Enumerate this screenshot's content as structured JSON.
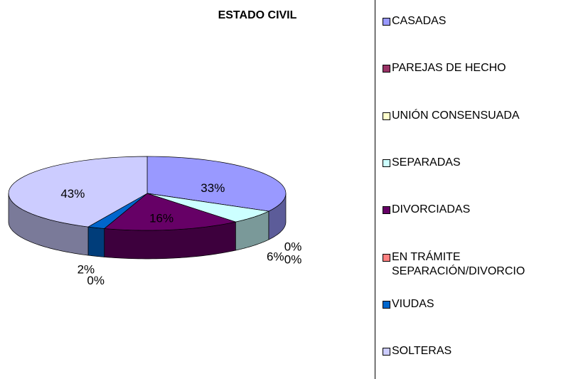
{
  "chart_data": {
    "type": "pie",
    "title": "ESTADO CIVIL",
    "categories": [
      "CASADAS",
      "PAREJAS DE HECHO",
      "UNIÓN CONSENSUADA",
      "SEPARADAS",
      "DIVORCIADAS",
      "EN TRÁMITE SEPARACIÓN/DIVORCIO",
      "VIUDAS",
      "SOLTERAS"
    ],
    "values": [
      33,
      0,
      0,
      6,
      16,
      0,
      2,
      43
    ],
    "value_labels": [
      "33%",
      "0%",
      "0%",
      "6%",
      "16%",
      "0%",
      "2%",
      "43%"
    ],
    "colors": [
      "#9999ff",
      "#993366",
      "#ffffcc",
      "#ccffff",
      "#660066",
      "#ff8080",
      "#0066cc",
      "#ccccff"
    ],
    "legend": "right"
  }
}
